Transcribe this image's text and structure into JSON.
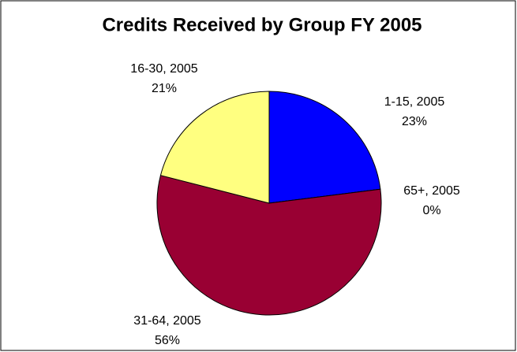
{
  "chart_data": {
    "type": "pie",
    "title": "Credits Received by Group FY 2005",
    "categories": [
      "1-15, 2005",
      "65+, 2005",
      "31-64, 2005",
      "16-30, 2005"
    ],
    "values": [
      23,
      0,
      56,
      21
    ],
    "value_labels": [
      "23%",
      "0%",
      "56%",
      "21%"
    ],
    "colors": [
      "#0000ff",
      "#cc99cc",
      "#990033",
      "#ffff80"
    ]
  }
}
